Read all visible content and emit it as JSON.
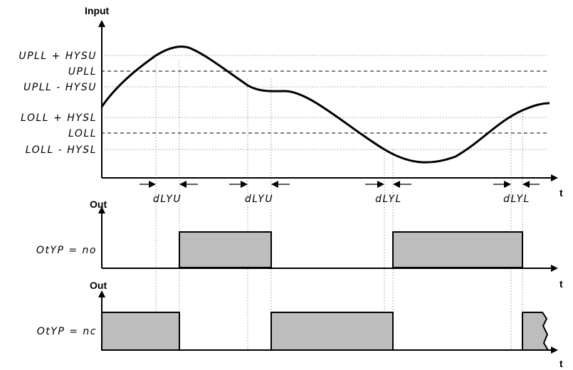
{
  "labels": {
    "input_axis": "Input",
    "out_axis_1": "Out",
    "out_axis_2": "Out",
    "t_axis_1": "t",
    "t_axis_2": "t",
    "t_axis_3": "t",
    "upll_plus_hysu": "UPLL + HYSU",
    "upll": "UPLL",
    "upll_minus_hysu": "UPLL - HYSU",
    "loll_plus_hysl": "LOLL + HYSL",
    "loll": "LOLL",
    "loll_minus_hysl": "LOLL - HYSL",
    "dlyu_1": "dLYU",
    "dlyu_2": "dLYU",
    "dlyl_1": "dLYL",
    "dlyl_2": "dLYL",
    "otyp_no": "OtYP = no",
    "otyp_nc": "OtYP = nc"
  }
}
